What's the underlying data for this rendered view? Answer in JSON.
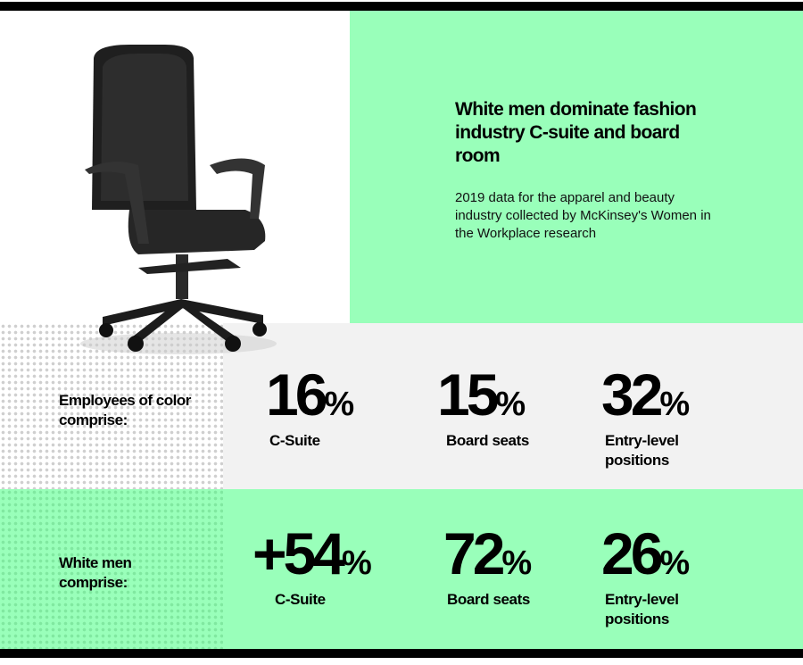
{
  "header": {
    "title": "White men dominate fashion industry C-suite and board room",
    "subtitle": "2019 data for the apparel and beauty industry collected by McKinsey's Women in the Workplace research"
  },
  "colors": {
    "accent": "#99ffba",
    "panel_gray": "#f2f2f2",
    "text": "#000000"
  },
  "image": "office-chair",
  "rows": [
    {
      "label": "Employees of color comprise:",
      "stats": [
        {
          "value": "16",
          "unit": "%",
          "caption": "C-Suite"
        },
        {
          "value": "15",
          "unit": "%",
          "caption": "Board seats"
        },
        {
          "value": "32",
          "unit": "%",
          "caption": "Entry-level positions"
        }
      ]
    },
    {
      "label": "White men comprise:",
      "stats": [
        {
          "value": "+54",
          "unit": "%",
          "caption": "C-Suite"
        },
        {
          "value": "72",
          "unit": "%",
          "caption": "Board seats"
        },
        {
          "value": "26",
          "unit": "%",
          "caption": "Entry-level positions"
        }
      ]
    }
  ]
}
